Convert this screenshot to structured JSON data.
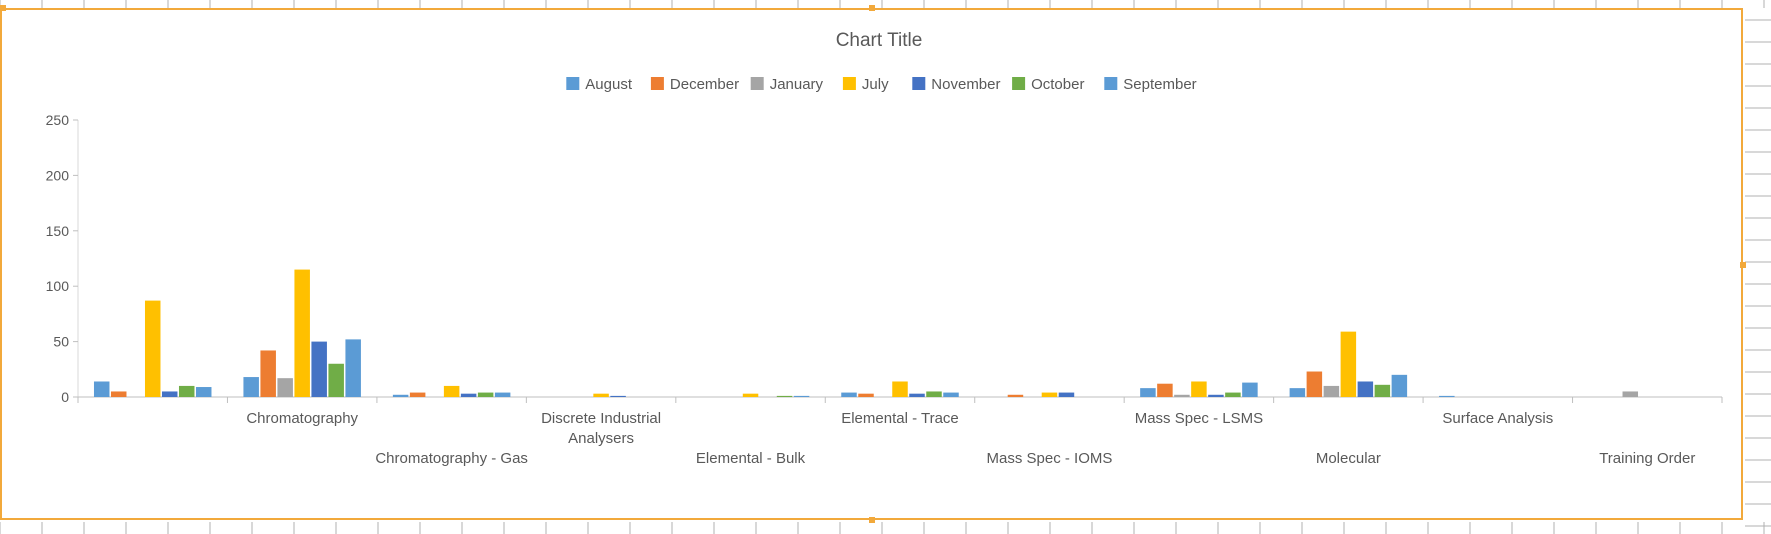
{
  "chart_data": {
    "type": "bar",
    "title": "Chart Title",
    "xlabel": "",
    "ylabel": "",
    "ylim": [
      0,
      250
    ],
    "yticks": [
      0,
      50,
      100,
      150,
      200,
      250
    ],
    "grid": false,
    "legend_position": "top",
    "categories": [
      "",
      "Chromatography",
      "Chromatography - Gas",
      "Discrete Industrial Analysers",
      "Elemental - Bulk",
      "Elemental - Trace",
      "Mass Spec - IOMS",
      "Mass Spec - LSMS",
      "Molecular",
      "Surface Analysis",
      "Training Order"
    ],
    "series": [
      {
        "name": "August",
        "color": "#5b9bd5",
        "values": [
          14,
          18,
          2,
          0,
          0,
          4,
          0,
          8,
          8,
          1,
          0
        ]
      },
      {
        "name": "December",
        "color": "#ed7d31",
        "values": [
          5,
          42,
          4,
          0,
          0,
          3,
          2,
          12,
          23,
          0,
          0
        ]
      },
      {
        "name": "January",
        "color": "#a5a5a5",
        "values": [
          0,
          17,
          0,
          0,
          0,
          0,
          0,
          2,
          10,
          0,
          5
        ]
      },
      {
        "name": "July",
        "color": "#ffc000",
        "values": [
          87,
          115,
          10,
          3,
          3,
          14,
          4,
          14,
          59,
          0,
          0
        ]
      },
      {
        "name": "November",
        "color": "#4472c4",
        "values": [
          5,
          50,
          3,
          1,
          0,
          3,
          4,
          2,
          14,
          0,
          0
        ]
      },
      {
        "name": "October",
        "color": "#70ad47",
        "values": [
          10,
          30,
          4,
          0,
          1,
          5,
          0,
          4,
          11,
          0,
          0
        ]
      },
      {
        "name": "September",
        "color": "#5b9bd5",
        "values": [
          9,
          52,
          4,
          0,
          1,
          4,
          0,
          13,
          20,
          0,
          0
        ]
      }
    ]
  }
}
